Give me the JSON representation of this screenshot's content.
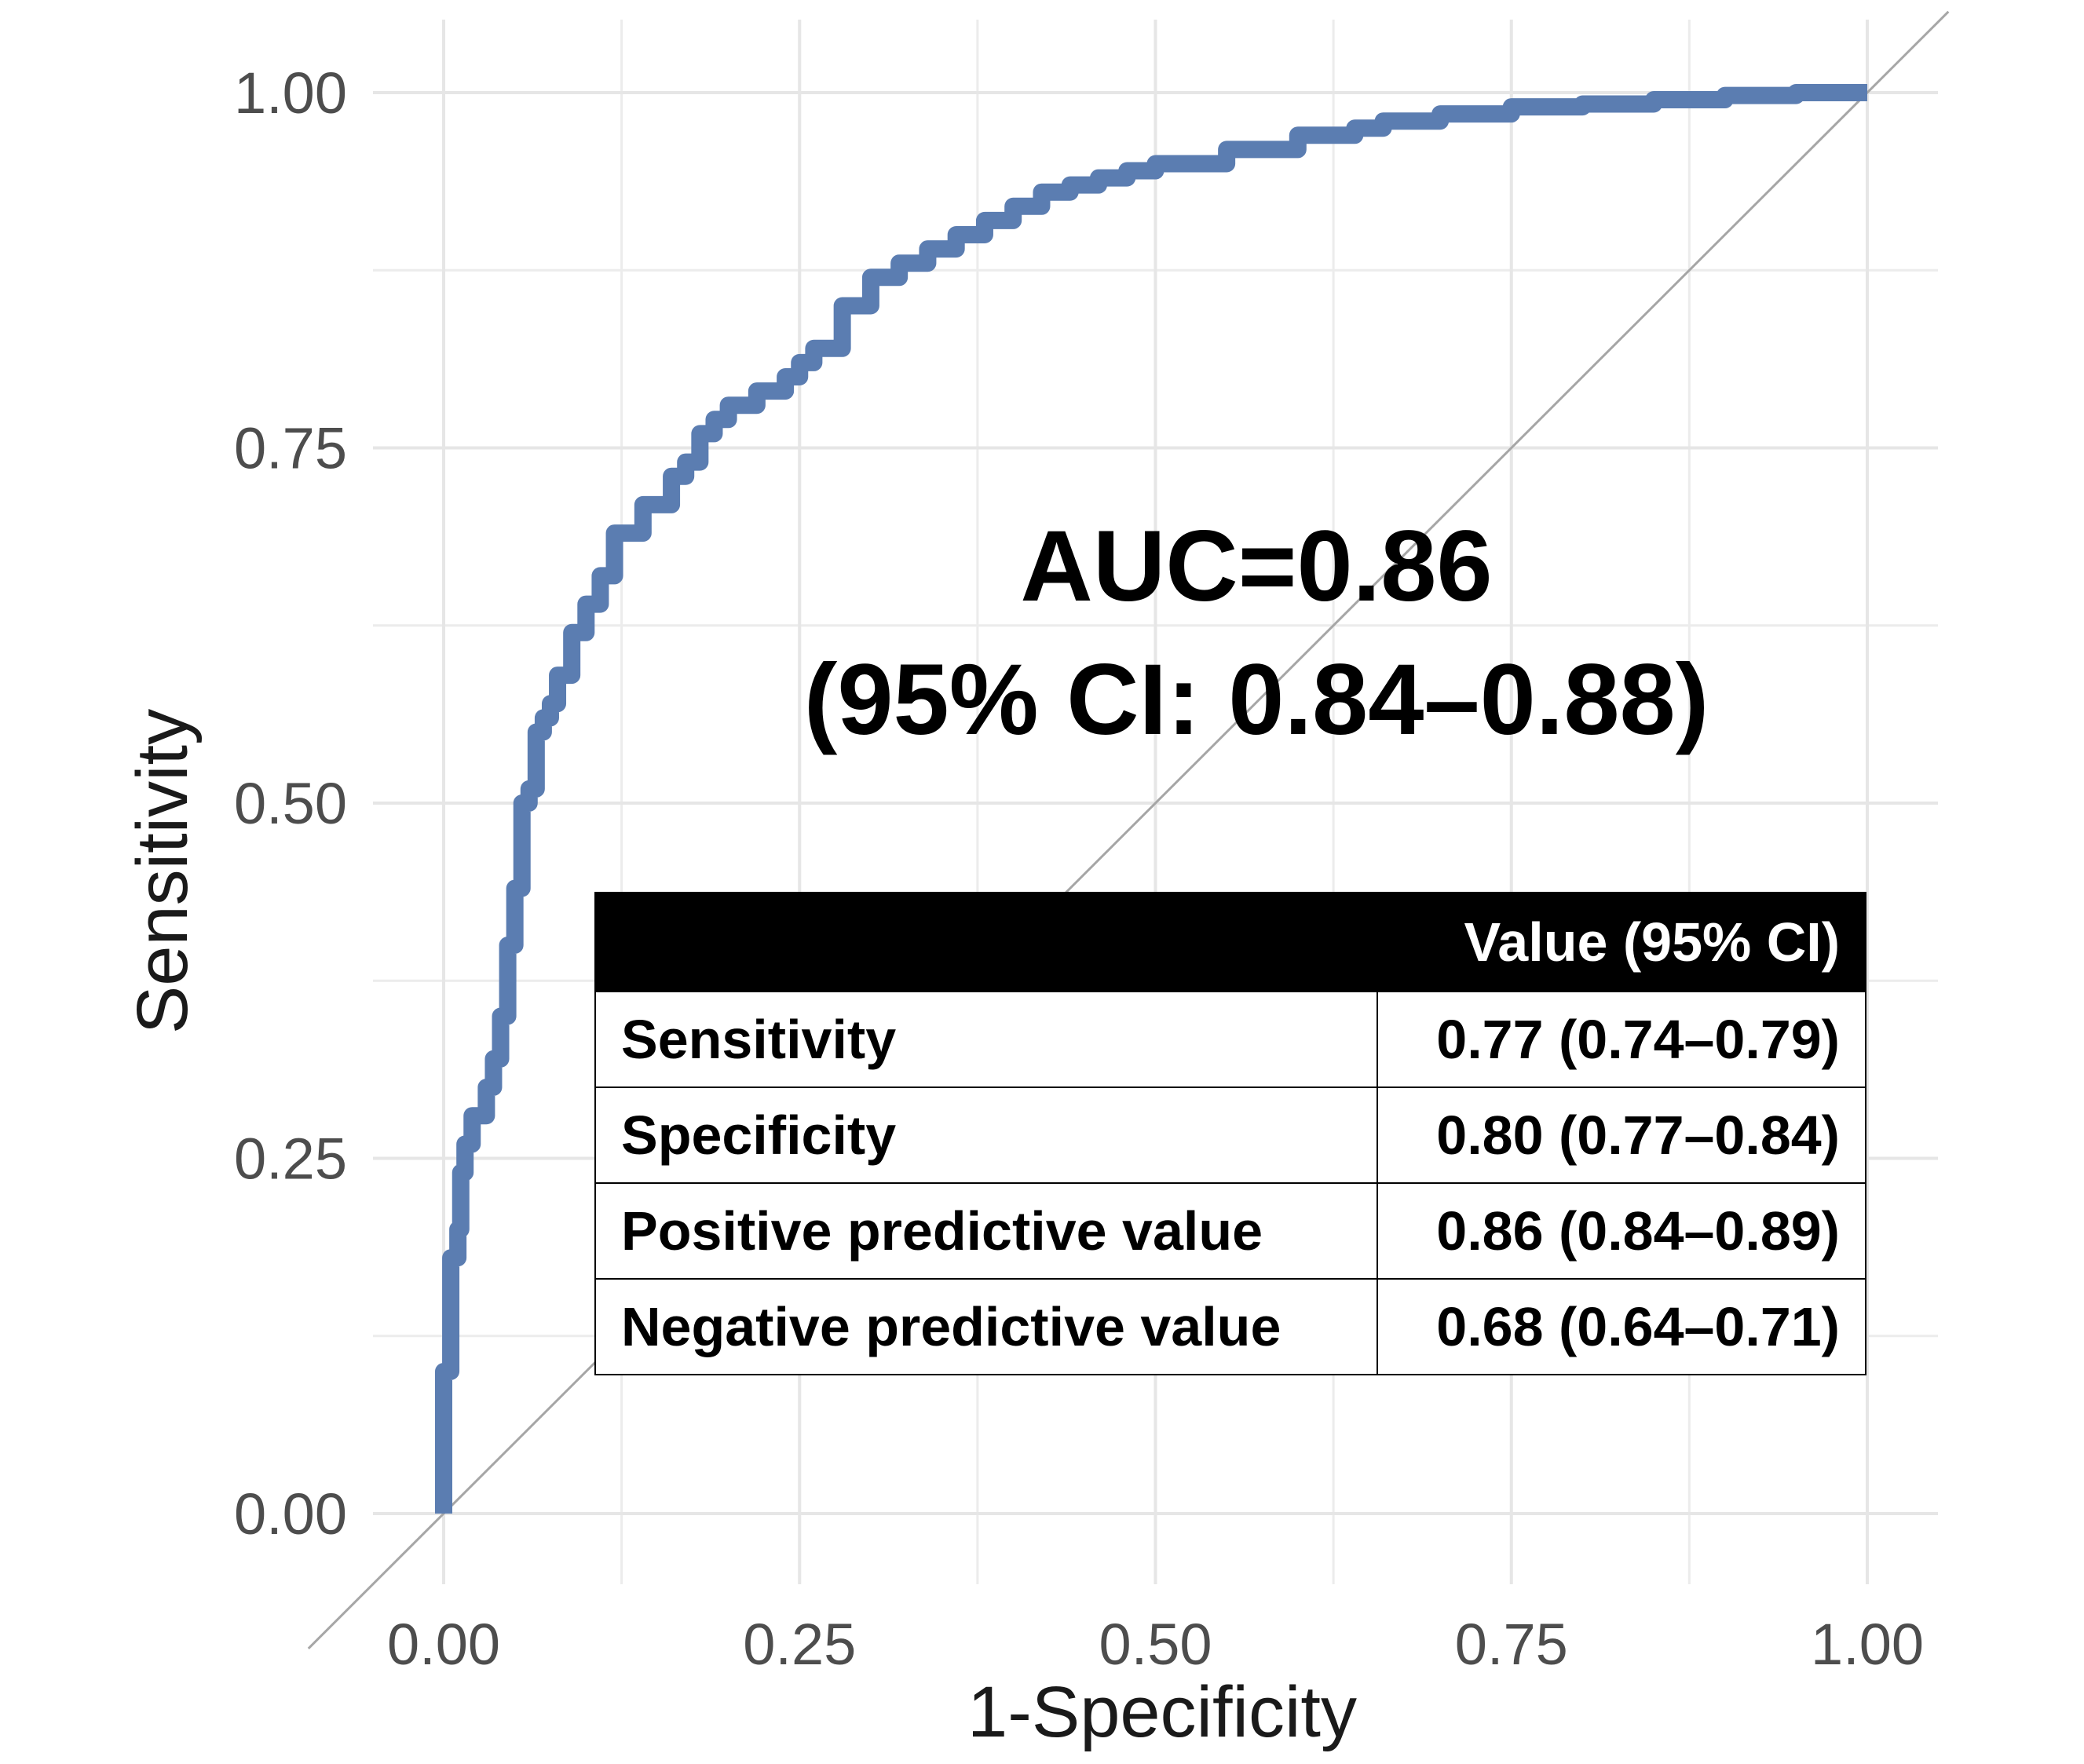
{
  "chart_data": {
    "type": "line",
    "xlabel": "1-Specificity",
    "ylabel": "Sensitivity",
    "xlim": [
      0,
      1
    ],
    "ylim": [
      0,
      1
    ],
    "x_ticks": [
      "0.00",
      "0.25",
      "0.50",
      "0.75",
      "1.00"
    ],
    "y_ticks": [
      "0.00",
      "0.25",
      "0.50",
      "0.75",
      "1.00"
    ],
    "grid": true,
    "line_color": "#5b7db1",
    "reference_line_color": "#a6a6a6",
    "series": [
      {
        "x": [
          0.0,
          0.0,
          0.005,
          0.01,
          0.012,
          0.015,
          0.02,
          0.03,
          0.035,
          0.04,
          0.045,
          0.05,
          0.055,
          0.06,
          0.065,
          0.07,
          0.075,
          0.08,
          0.09,
          0.1,
          0.11,
          0.12,
          0.14,
          0.16,
          0.17,
          0.18,
          0.19,
          0.2,
          0.22,
          0.24,
          0.25,
          0.26,
          0.28,
          0.3,
          0.32,
          0.34,
          0.36,
          0.38,
          0.4,
          0.42,
          0.44,
          0.46,
          0.48,
          0.5,
          0.55,
          0.6,
          0.64,
          0.66,
          0.7,
          0.75,
          0.8,
          0.85,
          0.9,
          0.95,
          1.0
        ],
        "y": [
          0.0,
          0.03,
          0.1,
          0.18,
          0.2,
          0.24,
          0.26,
          0.28,
          0.3,
          0.32,
          0.35,
          0.4,
          0.44,
          0.5,
          0.51,
          0.55,
          0.56,
          0.57,
          0.59,
          0.62,
          0.64,
          0.66,
          0.69,
          0.71,
          0.73,
          0.74,
          0.76,
          0.77,
          0.78,
          0.79,
          0.8,
          0.81,
          0.82,
          0.85,
          0.87,
          0.88,
          0.89,
          0.9,
          0.91,
          0.92,
          0.93,
          0.935,
          0.94,
          0.945,
          0.95,
          0.96,
          0.97,
          0.975,
          0.98,
          0.985,
          0.99,
          0.992,
          0.995,
          0.998,
          1.0
        ]
      }
    ],
    "annotation": {
      "line1": "AUC=0.86",
      "line2": "(95% CI: 0.84–0.88)"
    },
    "table": {
      "headers": [
        "",
        "Value (95% CI)"
      ],
      "rows": [
        {
          "metric": "Sensitivity",
          "value": "0.77 (0.74–0.79)"
        },
        {
          "metric": "Specificity",
          "value": "0.80 (0.77–0.84)"
        },
        {
          "metric": "Positive predictive value",
          "value": "0.86 (0.84–0.89)"
        },
        {
          "metric": "Negative predictive value",
          "value": "0.68 (0.64–0.71)"
        }
      ]
    }
  }
}
